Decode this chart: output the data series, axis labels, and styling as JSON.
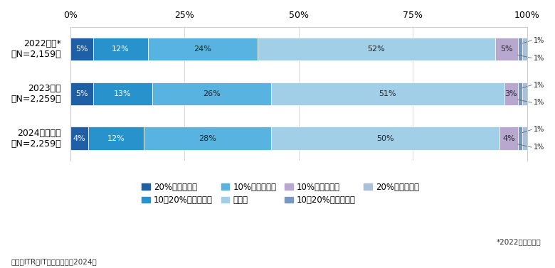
{
  "categories": [
    "2022年度*\n（N=2,159）",
    "2023年度\n（N=2,259）",
    "2024年度予想\n（N=2,259）"
  ],
  "series": [
    {
      "label": "20%以上の増加",
      "values": [
        5,
        5,
        4
      ],
      "color": "#1e5fa5"
    },
    {
      "label": "10～20%未満の増加",
      "values": [
        12,
        13,
        12
      ],
      "color": "#2892cc"
    },
    {
      "label": "10%未満の増加",
      "values": [
        24,
        26,
        28
      ],
      "color": "#59b3e0"
    },
    {
      "label": "横ばい",
      "values": [
        52,
        51,
        50
      ],
      "color": "#a2cfe8"
    },
    {
      "label": "10%未満の減少",
      "values": [
        5,
        3,
        4
      ],
      "color": "#b8a8d0"
    },
    {
      "label": "10～20%未満の減少",
      "values": [
        1,
        1,
        1
      ],
      "color": "#7898c0"
    },
    {
      "label": "20%以上の減少",
      "values": [
        1,
        1,
        1
      ],
      "color": "#a8c0d8"
    }
  ],
  "xlim": [
    0,
    100
  ],
  "xticks": [
    0,
    25,
    50,
    75,
    100
  ],
  "xticklabels": [
    "0%",
    "25%",
    "50%",
    "75%",
    "100%"
  ],
  "background_color": "#ffffff",
  "bar_height": 0.52,
  "footnote": "*2022年調査結果",
  "source": "出典：ITR『IT投賄動向調査2024』",
  "cum_sums": [
    [
      5,
      17,
      41,
      93,
      98,
      99,
      100
    ],
    [
      5,
      18,
      44,
      95,
      98,
      99,
      100
    ],
    [
      4,
      16,
      44,
      94,
      98,
      99,
      100
    ]
  ]
}
